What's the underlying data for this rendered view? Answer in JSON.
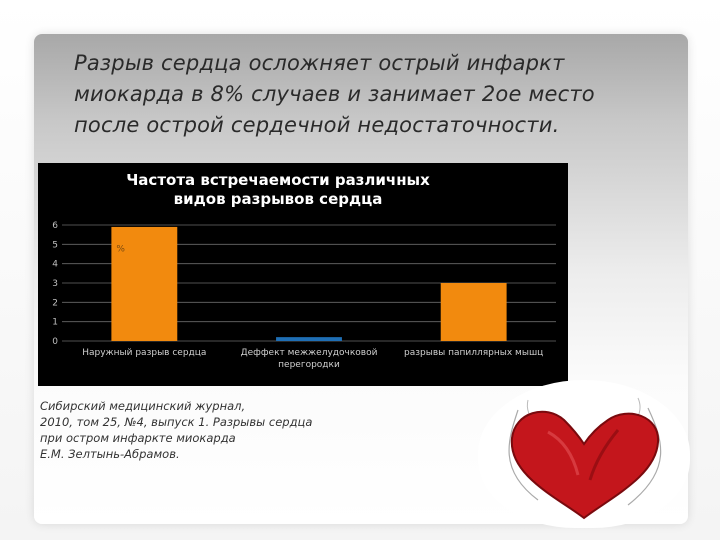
{
  "slide": {
    "title_lines": [
      "Разрыв сердца осложняет острый инфаркт",
      "миокарда в 8% случаев и занимает 2ое место",
      "после острой сердечной недостаточности."
    ],
    "citation_lines": [
      "Сибирский медицинский журнал,",
      "2010, том 25, №4, выпуск 1. Разрывы сердца",
      " при остром инфаркте миокарда",
      "Е.М. Зелтынь-Абрамов."
    ]
  },
  "chart_data": {
    "type": "bar",
    "title_lines": [
      "Частота встречаемости различных",
      "видов разрывов сердца"
    ],
    "categories": [
      [
        "Наружный разрыв сердца"
      ],
      [
        "Деффект межжелудочковой",
        "перегородки"
      ],
      [
        "разрывы папиллярных мышц"
      ]
    ],
    "values": [
      5.9,
      0.2,
      3
    ],
    "bar_colors": [
      "#F28A0E",
      "#1F6FB5",
      "#F28A0E"
    ],
    "data_label": "%",
    "ylim": [
      0,
      6
    ],
    "yticks": [
      "0",
      "1",
      "2",
      "3",
      "4",
      "5",
      "6"
    ],
    "grid": true
  }
}
